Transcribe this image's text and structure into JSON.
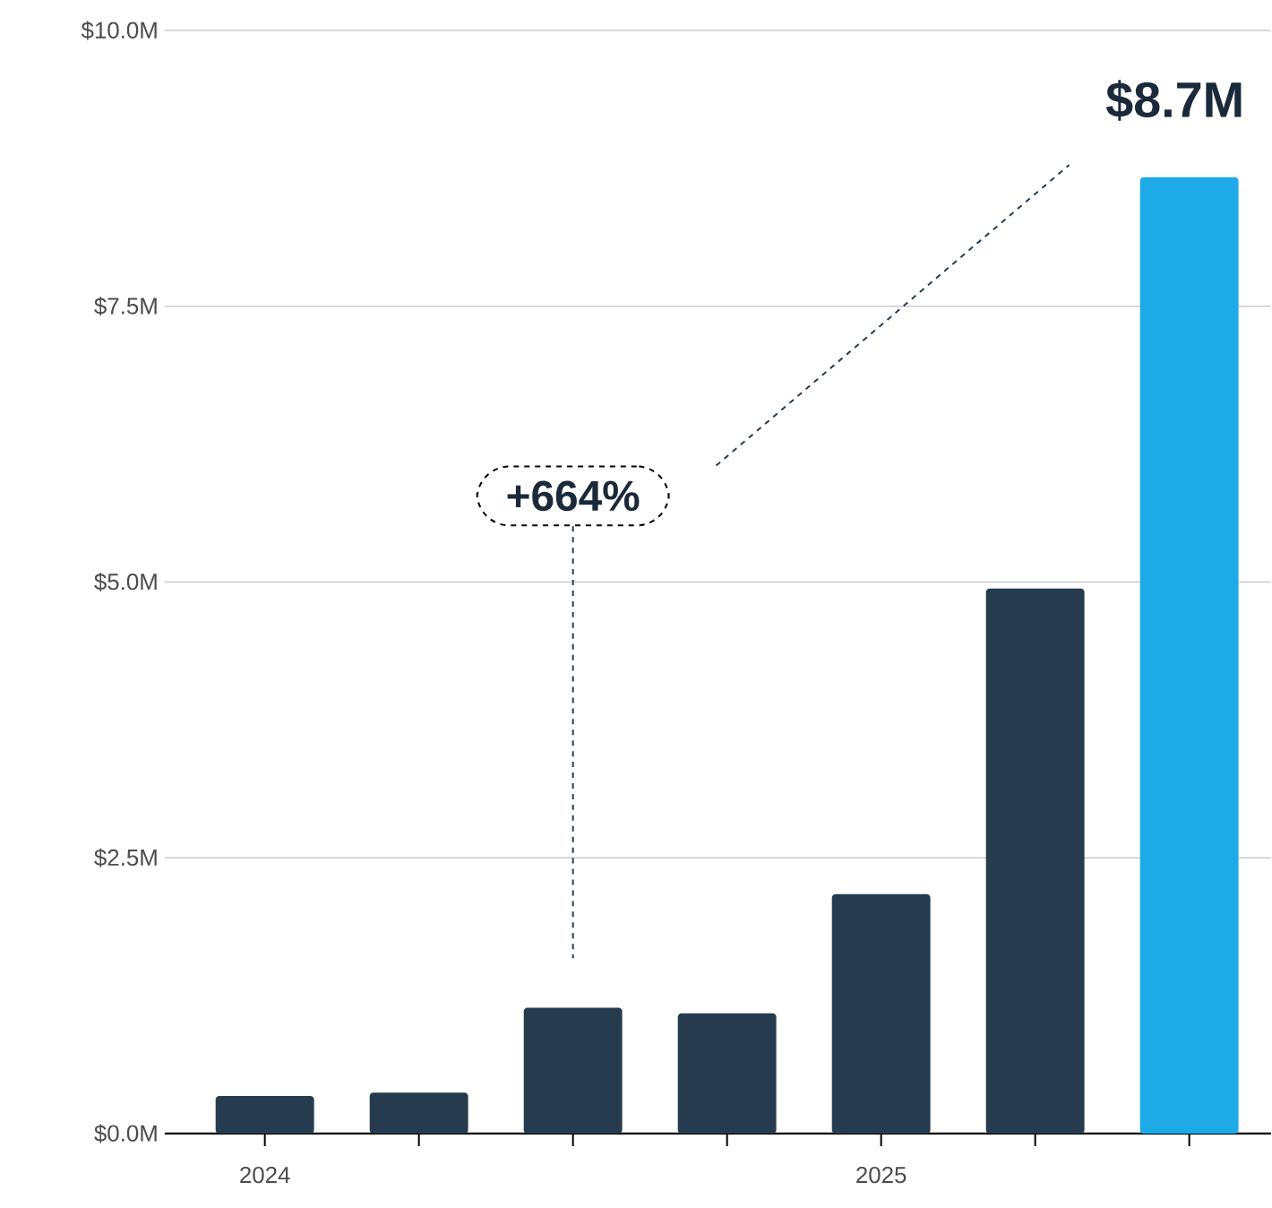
{
  "chart_data": {
    "type": "bar",
    "categories": [
      "2024",
      null,
      null,
      null,
      "2025",
      null,
      null
    ],
    "values": [
      0.34,
      0.37,
      1.14,
      1.09,
      2.17,
      4.94,
      8.67
    ],
    "colors": [
      "#263b4e",
      "#263b4e",
      "#263b4e",
      "#263b4e",
      "#263b4e",
      "#263b4e",
      "#1eaae7"
    ],
    "value_labels": [
      null,
      null,
      null,
      null,
      null,
      null,
      "$8.7M"
    ],
    "ylim": [
      0,
      10
    ],
    "yticks": [
      {
        "value": 0,
        "label": "$0.0M"
      },
      {
        "value": 2.5,
        "label": "$2.5M"
      },
      {
        "value": 5,
        "label": "$5.0M"
      },
      {
        "value": 7.5,
        "label": "$7.5M"
      },
      {
        "value": 10,
        "label": "$10.0M"
      }
    ],
    "grid": "y",
    "annotations": [
      "+664%"
    ]
  }
}
